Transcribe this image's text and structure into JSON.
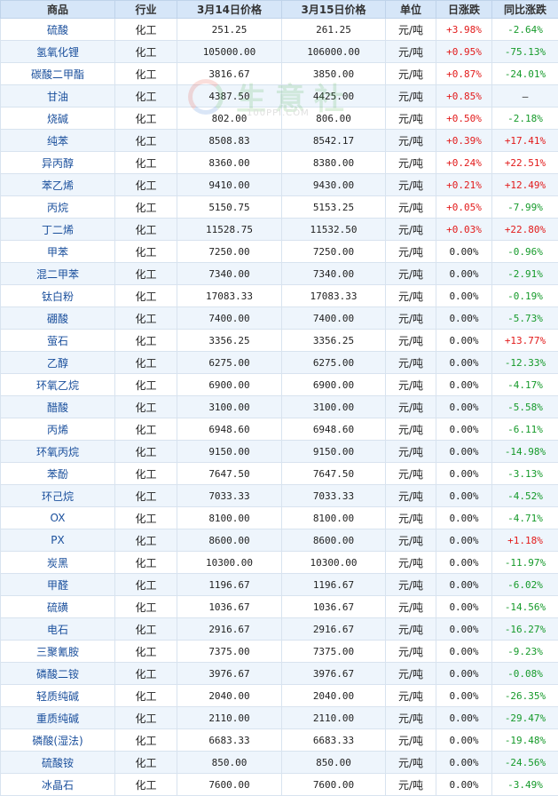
{
  "header": {
    "product": "商品",
    "industry": "行业",
    "price_prev": "3月14日价格",
    "price_curr": "3月15日价格",
    "unit": "单位",
    "daily_change": "日涨跌",
    "yoy_change": "同比涨跌"
  },
  "watermark": {
    "text": "生意社",
    "url": "100PPI.COM"
  },
  "colors": {
    "header_bg": "#d6e6f8",
    "row_alt": "#eef5fc",
    "up": "#e21a1a",
    "down": "#159a2a",
    "name": "#1a4f9c"
  },
  "rows": [
    {
      "name": "硫酸",
      "industry": "化工",
      "p1": "251.25",
      "p2": "261.25",
      "unit": "元/吨",
      "day": "+3.98%",
      "yoy": "-2.64%"
    },
    {
      "name": "氢氧化锂",
      "industry": "化工",
      "p1": "105000.00",
      "p2": "106000.00",
      "unit": "元/吨",
      "day": "+0.95%",
      "yoy": "-75.13%"
    },
    {
      "name": "碳酸二甲酯",
      "industry": "化工",
      "p1": "3816.67",
      "p2": "3850.00",
      "unit": "元/吨",
      "day": "+0.87%",
      "yoy": "-24.01%"
    },
    {
      "name": "甘油",
      "industry": "化工",
      "p1": "4387.50",
      "p2": "4425.00",
      "unit": "元/吨",
      "day": "+0.85%",
      "yoy": "—"
    },
    {
      "name": "烧碱",
      "industry": "化工",
      "p1": "802.00",
      "p2": "806.00",
      "unit": "元/吨",
      "day": "+0.50%",
      "yoy": "-2.18%"
    },
    {
      "name": "纯苯",
      "industry": "化工",
      "p1": "8508.83",
      "p2": "8542.17",
      "unit": "元/吨",
      "day": "+0.39%",
      "yoy": "+17.41%"
    },
    {
      "name": "异丙醇",
      "industry": "化工",
      "p1": "8360.00",
      "p2": "8380.00",
      "unit": "元/吨",
      "day": "+0.24%",
      "yoy": "+22.51%"
    },
    {
      "name": "苯乙烯",
      "industry": "化工",
      "p1": "9410.00",
      "p2": "9430.00",
      "unit": "元/吨",
      "day": "+0.21%",
      "yoy": "+12.49%"
    },
    {
      "name": "丙烷",
      "industry": "化工",
      "p1": "5150.75",
      "p2": "5153.25",
      "unit": "元/吨",
      "day": "+0.05%",
      "yoy": "-7.99%"
    },
    {
      "name": "丁二烯",
      "industry": "化工",
      "p1": "11528.75",
      "p2": "11532.50",
      "unit": "元/吨",
      "day": "+0.03%",
      "yoy": "+22.80%"
    },
    {
      "name": "甲苯",
      "industry": "化工",
      "p1": "7250.00",
      "p2": "7250.00",
      "unit": "元/吨",
      "day": "0.00%",
      "yoy": "-0.96%"
    },
    {
      "name": "混二甲苯",
      "industry": "化工",
      "p1": "7340.00",
      "p2": "7340.00",
      "unit": "元/吨",
      "day": "0.00%",
      "yoy": "-2.91%"
    },
    {
      "name": "钛白粉",
      "industry": "化工",
      "p1": "17083.33",
      "p2": "17083.33",
      "unit": "元/吨",
      "day": "0.00%",
      "yoy": "-0.19%"
    },
    {
      "name": "硼酸",
      "industry": "化工",
      "p1": "7400.00",
      "p2": "7400.00",
      "unit": "元/吨",
      "day": "0.00%",
      "yoy": "-5.73%"
    },
    {
      "name": "萤石",
      "industry": "化工",
      "p1": "3356.25",
      "p2": "3356.25",
      "unit": "元/吨",
      "day": "0.00%",
      "yoy": "+13.77%"
    },
    {
      "name": "乙醇",
      "industry": "化工",
      "p1": "6275.00",
      "p2": "6275.00",
      "unit": "元/吨",
      "day": "0.00%",
      "yoy": "-12.33%"
    },
    {
      "name": "环氧乙烷",
      "industry": "化工",
      "p1": "6900.00",
      "p2": "6900.00",
      "unit": "元/吨",
      "day": "0.00%",
      "yoy": "-4.17%"
    },
    {
      "name": "醋酸",
      "industry": "化工",
      "p1": "3100.00",
      "p2": "3100.00",
      "unit": "元/吨",
      "day": "0.00%",
      "yoy": "-5.58%"
    },
    {
      "name": "丙烯",
      "industry": "化工",
      "p1": "6948.60",
      "p2": "6948.60",
      "unit": "元/吨",
      "day": "0.00%",
      "yoy": "-6.11%"
    },
    {
      "name": "环氧丙烷",
      "industry": "化工",
      "p1": "9150.00",
      "p2": "9150.00",
      "unit": "元/吨",
      "day": "0.00%",
      "yoy": "-14.98%"
    },
    {
      "name": "苯酚",
      "industry": "化工",
      "p1": "7647.50",
      "p2": "7647.50",
      "unit": "元/吨",
      "day": "0.00%",
      "yoy": "-3.13%"
    },
    {
      "name": "环己烷",
      "industry": "化工",
      "p1": "7033.33",
      "p2": "7033.33",
      "unit": "元/吨",
      "day": "0.00%",
      "yoy": "-4.52%"
    },
    {
      "name": "OX",
      "industry": "化工",
      "p1": "8100.00",
      "p2": "8100.00",
      "unit": "元/吨",
      "day": "0.00%",
      "yoy": "-4.71%"
    },
    {
      "name": "PX",
      "industry": "化工",
      "p1": "8600.00",
      "p2": "8600.00",
      "unit": "元/吨",
      "day": "0.00%",
      "yoy": "+1.18%"
    },
    {
      "name": "炭黑",
      "industry": "化工",
      "p1": "10300.00",
      "p2": "10300.00",
      "unit": "元/吨",
      "day": "0.00%",
      "yoy": "-11.97%"
    },
    {
      "name": "甲醛",
      "industry": "化工",
      "p1": "1196.67",
      "p2": "1196.67",
      "unit": "元/吨",
      "day": "0.00%",
      "yoy": "-6.02%"
    },
    {
      "name": "硫磺",
      "industry": "化工",
      "p1": "1036.67",
      "p2": "1036.67",
      "unit": "元/吨",
      "day": "0.00%",
      "yoy": "-14.56%"
    },
    {
      "name": "电石",
      "industry": "化工",
      "p1": "2916.67",
      "p2": "2916.67",
      "unit": "元/吨",
      "day": "0.00%",
      "yoy": "-16.27%"
    },
    {
      "name": "三聚氰胺",
      "industry": "化工",
      "p1": "7375.00",
      "p2": "7375.00",
      "unit": "元/吨",
      "day": "0.00%",
      "yoy": "-9.23%"
    },
    {
      "name": "磷酸二铵",
      "industry": "化工",
      "p1": "3976.67",
      "p2": "3976.67",
      "unit": "元/吨",
      "day": "0.00%",
      "yoy": "-0.08%"
    },
    {
      "name": "轻质纯碱",
      "industry": "化工",
      "p1": "2040.00",
      "p2": "2040.00",
      "unit": "元/吨",
      "day": "0.00%",
      "yoy": "-26.35%"
    },
    {
      "name": "重质纯碱",
      "industry": "化工",
      "p1": "2110.00",
      "p2": "2110.00",
      "unit": "元/吨",
      "day": "0.00%",
      "yoy": "-29.47%"
    },
    {
      "name": "磷酸(湿法)",
      "industry": "化工",
      "p1": "6683.33",
      "p2": "6683.33",
      "unit": "元/吨",
      "day": "0.00%",
      "yoy": "-19.48%"
    },
    {
      "name": "硫酸铵",
      "industry": "化工",
      "p1": "850.00",
      "p2": "850.00",
      "unit": "元/吨",
      "day": "0.00%",
      "yoy": "-24.56%"
    },
    {
      "name": "冰晶石",
      "industry": "化工",
      "p1": "7600.00",
      "p2": "7600.00",
      "unit": "元/吨",
      "day": "0.00%",
      "yoy": "-3.49%"
    }
  ]
}
